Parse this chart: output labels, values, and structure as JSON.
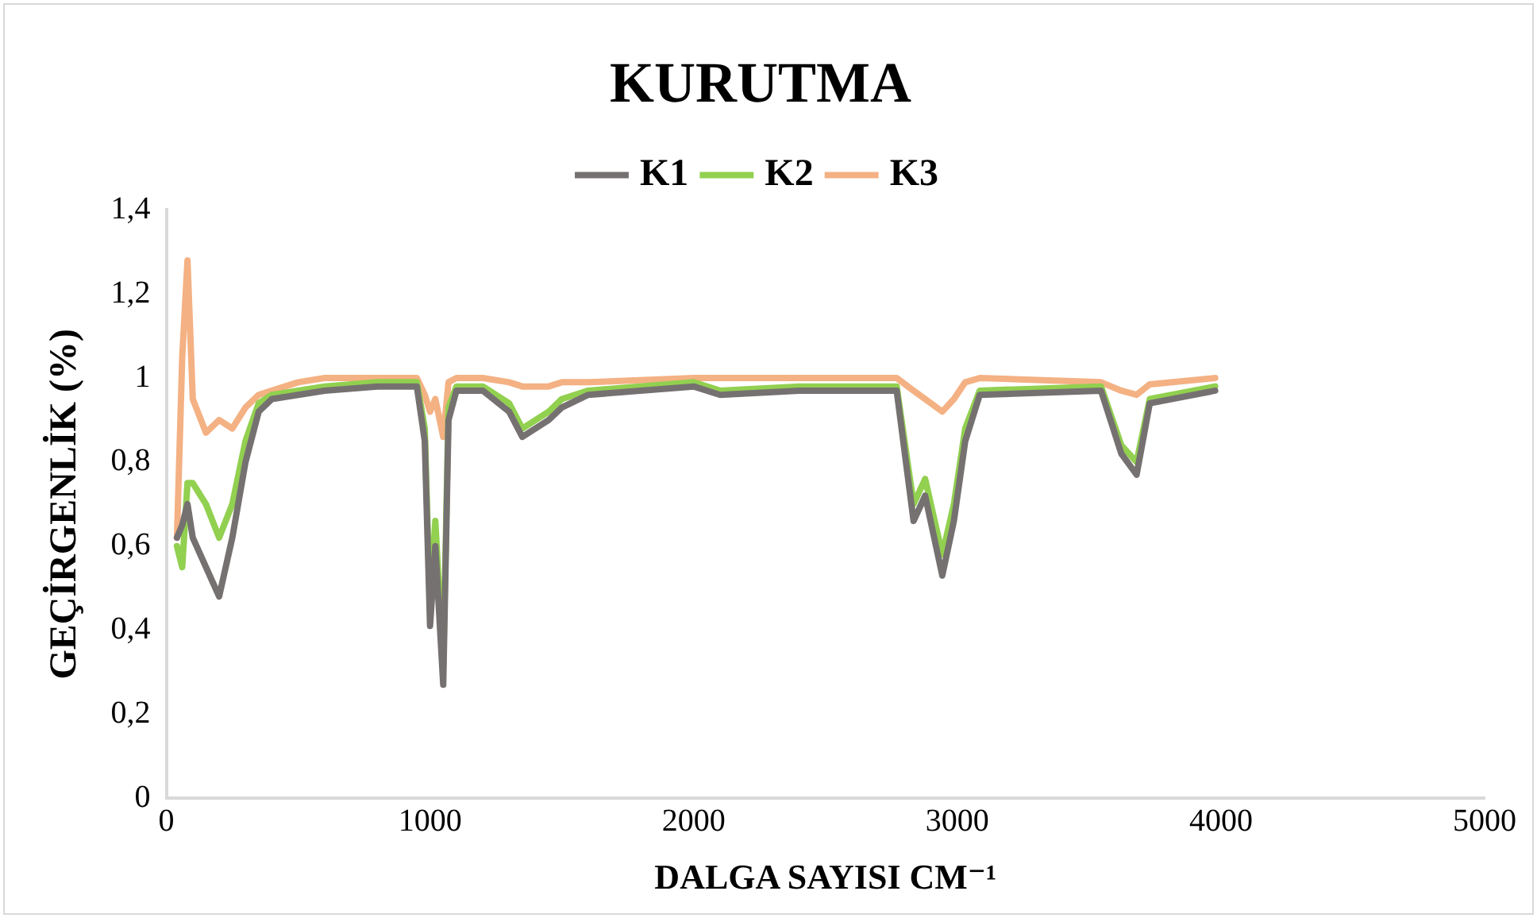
{
  "chart_data": {
    "type": "line",
    "title": "KURUTMA",
    "xlabel": "DALGA SAYISI CM⁻¹",
    "ylabel": "GEÇİRGENLİK (%)",
    "xlim": [
      0,
      5000
    ],
    "xticks": [
      0,
      1000,
      2000,
      3000,
      4000,
      5000
    ],
    "ylim": [
      0,
      1.4
    ],
    "yticks": [
      0,
      {
        "value": 0.2,
        "label": "0,2"
      },
      {
        "value": 0.4,
        "label": "0,4"
      },
      {
        "value": 0.6,
        "label": "0,6"
      },
      {
        "value": 0.8,
        "label": "0,8"
      },
      1,
      {
        "value": 1.2,
        "label": "1,2"
      },
      {
        "value": 1.4,
        "label": "1,4"
      }
    ],
    "grid": false,
    "legend": "top",
    "marker": "none",
    "line_style": "solid",
    "x": [
      40,
      60,
      80,
      100,
      150,
      200,
      250,
      300,
      350,
      400,
      500,
      600,
      800,
      950,
      980,
      1000,
      1020,
      1050,
      1070,
      1100,
      1200,
      1300,
      1350,
      1450,
      1500,
      1600,
      2000,
      2100,
      2400,
      2770,
      2834,
      2878,
      2943,
      2987,
      3030,
      3085,
      3545,
      3622,
      3680,
      3730,
      3978
    ],
    "series": [
      {
        "name": "K1",
        "color": "#767171",
        "values": [
          0.62,
          0.65,
          0.7,
          0.62,
          0.55,
          0.48,
          0.62,
          0.8,
          0.92,
          0.95,
          0.96,
          0.97,
          0.98,
          0.98,
          0.85,
          0.41,
          0.6,
          0.27,
          0.9,
          0.97,
          0.97,
          0.92,
          0.86,
          0.9,
          0.93,
          0.96,
          0.98,
          0.96,
          0.97,
          0.97,
          0.66,
          0.72,
          0.53,
          0.66,
          0.85,
          0.96,
          0.97,
          0.82,
          0.77,
          0.94,
          0.97
        ]
      },
      {
        "name": "K2",
        "color": "#92d050",
        "values": [
          0.6,
          0.55,
          0.75,
          0.75,
          0.7,
          0.62,
          0.7,
          0.85,
          0.94,
          0.96,
          0.97,
          0.98,
          0.99,
          0.99,
          0.88,
          0.45,
          0.66,
          0.31,
          0.93,
          0.98,
          0.98,
          0.94,
          0.88,
          0.92,
          0.95,
          0.97,
          0.99,
          0.97,
          0.98,
          0.98,
          0.7,
          0.76,
          0.58,
          0.7,
          0.88,
          0.97,
          0.98,
          0.84,
          0.8,
          0.95,
          0.98
        ]
      },
      {
        "name": "K3",
        "color": "#f4b183",
        "values": [
          0.62,
          1.05,
          1.28,
          0.95,
          0.87,
          0.9,
          0.88,
          0.93,
          0.96,
          0.97,
          0.99,
          1,
          1,
          1,
          0.96,
          0.92,
          0.95,
          0.86,
          0.99,
          1,
          1,
          0.99,
          0.98,
          0.98,
          0.99,
          0.99,
          1,
          1,
          1,
          1,
          0.97,
          0.95,
          0.92,
          0.95,
          0.99,
          1,
          0.99,
          0.97,
          0.96,
          0.985,
          1
        ]
      }
    ]
  }
}
